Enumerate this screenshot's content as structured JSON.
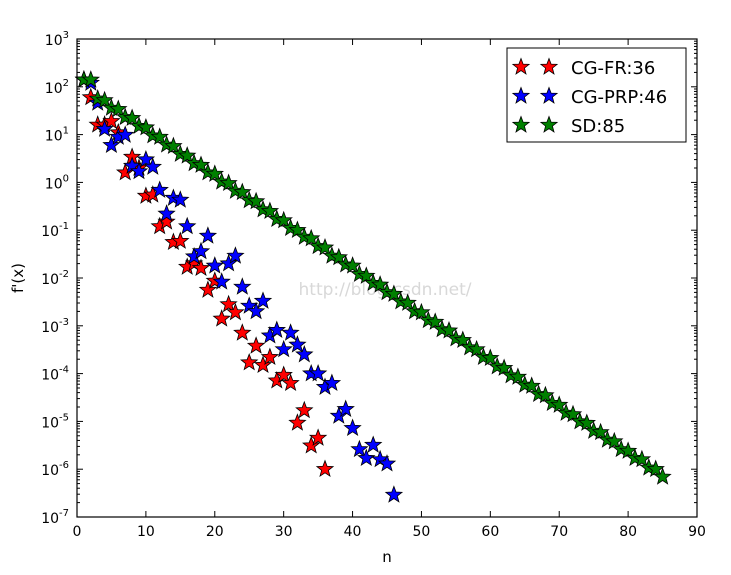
{
  "chart_data": {
    "type": "scatter",
    "xlabel": "n",
    "ylabel": "f'(x)",
    "xlim": [
      0,
      90
    ],
    "ylim": [
      1e-07,
      1000.0
    ],
    "yscale": "log",
    "grid": false,
    "legend_position": "top-right",
    "x_ticks": [
      "0",
      "10",
      "20",
      "30",
      "40",
      "50",
      "60",
      "70",
      "80",
      "90"
    ],
    "y_tick_exponents": [
      "-7",
      "-6",
      "-5",
      "-4",
      "-3",
      "-2",
      "-1",
      "0",
      "1",
      "2",
      "3"
    ],
    "y_tick_base": "10",
    "watermark": "http://blog.csdn.net/",
    "series": [
      {
        "name": "CG-FR:36",
        "color": "#ff0000",
        "values": [
          140,
          60,
          16,
          16,
          19,
          11,
          1.6,
          3.4,
          2.0,
          0.52,
          0.55,
          0.12,
          0.15,
          0.056,
          0.059,
          0.017,
          0.02,
          0.016,
          0.0056,
          0.0087,
          0.0014,
          0.0028,
          0.0019,
          0.00071,
          0.00017,
          0.00038,
          0.00015,
          0.00022,
          7.1e-05,
          9.3e-05,
          6.3e-05,
          9.3e-06,
          1.7e-05,
          3.1e-06,
          4.5e-06,
          1e-06
        ]
      },
      {
        "name": "CG-PRP:46",
        "color": "#0000ff",
        "values": [
          140,
          120,
          46,
          13,
          6.0,
          8.9,
          9.8,
          2.2,
          1.7,
          3.0,
          2.1,
          0.69,
          0.22,
          0.47,
          0.43,
          0.12,
          0.028,
          0.036,
          0.076,
          0.018,
          0.0083,
          0.02,
          0.029,
          0.0065,
          0.0026,
          0.002,
          0.0033,
          0.00062,
          0.00081,
          0.00032,
          0.00071,
          0.0004,
          0.00025,
          0.0001,
          0.0001,
          5.2e-05,
          6.3e-05,
          1.3e-05,
          1.8e-05,
          7.2e-06,
          2.6e-06,
          1.7e-06,
          3.2e-06,
          1.6e-06,
          1.3e-06,
          2.9e-07
        ]
      },
      {
        "name": "SD:85",
        "color": "#008000",
        "values": [
          140,
          140,
          56,
          52,
          36,
          34,
          23,
          22,
          15,
          14,
          9.5,
          8.9,
          6.1,
          5.7,
          3.9,
          3.6,
          2.5,
          2.3,
          1.6,
          1.5,
          1.03,
          0.96,
          0.66,
          0.62,
          0.42,
          0.4,
          0.27,
          0.25,
          0.17,
          0.16,
          0.11,
          0.1,
          0.072,
          0.067,
          0.046,
          0.043,
          0.029,
          0.027,
          0.019,
          0.018,
          0.012,
          0.011,
          0.0078,
          0.0072,
          0.005,
          0.0046,
          0.0032,
          0.003,
          0.002,
          0.0019,
          0.0013,
          0.0012,
          0.00084,
          0.00079,
          0.00054,
          0.0005,
          0.00035,
          0.00032,
          0.00022,
          0.00021,
          0.00014,
          0.00013,
          9.1e-05,
          8.5e-05,
          5.8e-05,
          5.5e-05,
          3.7e-05,
          3.5e-05,
          2.4e-05,
          2.2e-05,
          1.5e-05,
          1.4e-05,
          9.9e-06,
          9.2e-06,
          6.3e-06,
          5.9e-06,
          4.1e-06,
          3.8e-06,
          2.6e-06,
          2.4e-06,
          1.7e-06,
          1.6e-06,
          1.07e-06,
          1e-06,
          6.9e-07
        ]
      }
    ]
  }
}
